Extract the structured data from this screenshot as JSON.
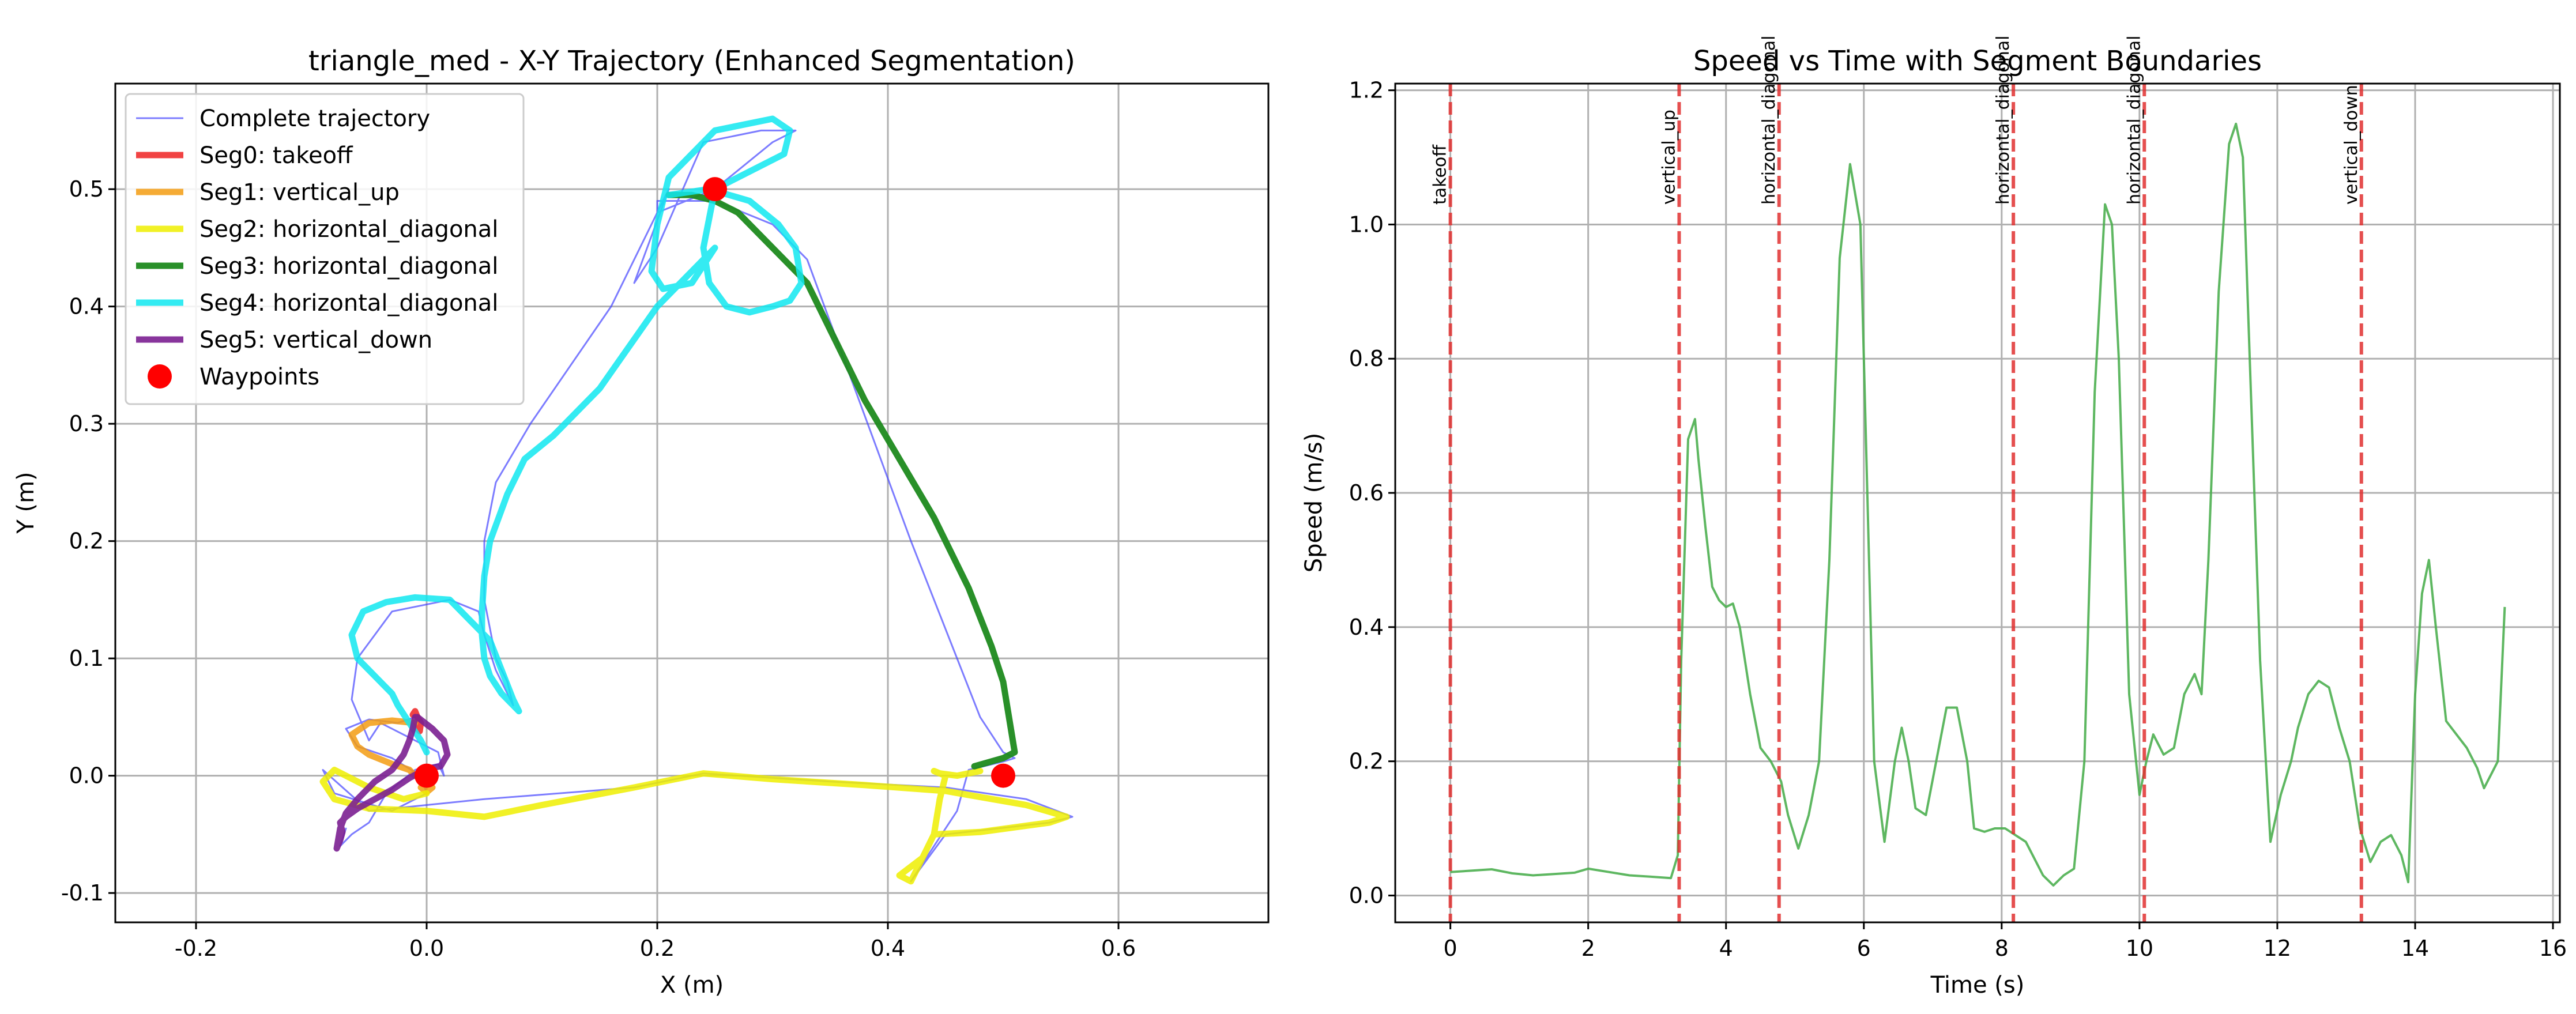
{
  "chart_data": [
    {
      "type": "line",
      "title": "triangle_med - X-Y Trajectory (Enhanced Segmentation)",
      "xlabel": "X (m)",
      "ylabel": "Y (m)",
      "xlim": [
        -0.27,
        0.73
      ],
      "ylim": [
        -0.125,
        0.59
      ],
      "xticks": [
        -0.2,
        0.0,
        0.2,
        0.4,
        0.6
      ],
      "xtick_labels": [
        "-0.2",
        "0.0",
        "0.2",
        "0.4",
        "0.6"
      ],
      "yticks": [
        -0.1,
        0.0,
        0.1,
        0.2,
        0.3,
        0.4,
        0.5
      ],
      "ytick_labels": [
        "-0.1",
        "0.0",
        "0.1",
        "0.2",
        "0.3",
        "0.4",
        "0.5"
      ],
      "grid": true,
      "legend_position": "top-left",
      "series": [
        {
          "name": "Complete trajectory",
          "color": "#4444ff",
          "width": 3,
          "opacity": 0.7,
          "x": [
            -0.01,
            -0.025,
            -0.05,
            -0.07,
            -0.06,
            -0.03,
            -0.005,
            0.0,
            -0.03,
            -0.08,
            -0.09,
            -0.05,
            0.05,
            0.18,
            0.24,
            0.35,
            0.45,
            0.52,
            0.56,
            0.54,
            0.45,
            0.42,
            0.44,
            0.46,
            0.47,
            0.5,
            0.51,
            0.5,
            0.48,
            0.42,
            0.33,
            0.3,
            0.25,
            0.2,
            0.2,
            0.25,
            0.3,
            0.32,
            0.29,
            0.24,
            0.2,
            0.18,
            0.21,
            0.16,
            0.09,
            0.06,
            0.05,
            0.05,
            0.06,
            0.07,
            0.075,
            0.06,
            0.05,
            0.045,
            0.02,
            -0.03,
            -0.06,
            -0.065,
            -0.05,
            -0.04,
            -0.03,
            -0.01,
            0.01,
            0.015,
            0.01,
            -0.01,
            -0.035,
            -0.05,
            -0.065,
            -0.075,
            -0.07
          ],
          "y": [
            0.05,
            0.045,
            0.048,
            0.04,
            0.025,
            0.015,
            0.0,
            -0.015,
            -0.03,
            -0.015,
            0.005,
            -0.03,
            -0.02,
            -0.01,
            0.002,
            -0.005,
            -0.01,
            -0.02,
            -0.035,
            -0.04,
            -0.05,
            -0.09,
            -0.06,
            -0.03,
            0.005,
            0.012,
            0.015,
            0.02,
            0.05,
            0.2,
            0.44,
            0.47,
            0.49,
            0.49,
            0.48,
            0.5,
            0.54,
            0.55,
            0.55,
            0.54,
            0.45,
            0.42,
            0.5,
            0.4,
            0.3,
            0.25,
            0.2,
            0.15,
            0.1,
            0.08,
            0.06,
            0.09,
            0.12,
            0.14,
            0.15,
            0.14,
            0.1,
            0.065,
            0.03,
            0.045,
            0.04,
            0.03,
            0.02,
            0.0,
            0.01,
            0.005,
            -0.015,
            -0.04,
            -0.05,
            -0.06,
            -0.045
          ]
        },
        {
          "name": "Seg0: takeoff",
          "color": "#ee2222",
          "width": 11,
          "opacity": 0.85,
          "x": [
            -0.012,
            -0.01,
            -0.008,
            -0.005,
            -0.006,
            -0.01
          ],
          "y": [
            0.052,
            0.055,
            0.05,
            0.045,
            0.038,
            0.042
          ]
        },
        {
          "name": "Seg1: vertical_up",
          "color": "#f39c12",
          "width": 11,
          "opacity": 0.85,
          "x": [
            -0.01,
            -0.03,
            -0.05,
            -0.065,
            -0.06,
            -0.05,
            -0.03,
            -0.015,
            -0.01,
            0.0,
            0.005,
            0.0,
            -0.005
          ],
          "y": [
            0.045,
            0.047,
            0.045,
            0.035,
            0.025,
            0.018,
            0.01,
            0.005,
            0.0,
            -0.005,
            -0.01,
            -0.014,
            -0.01
          ]
        },
        {
          "name": "Seg2: horizontal_diagonal",
          "color": "#eeee00",
          "width": 11,
          "opacity": 0.85,
          "x": [
            0.0,
            -0.02,
            -0.05,
            -0.08,
            -0.09,
            -0.08,
            -0.05,
            0.0,
            0.05,
            0.1,
            0.18,
            0.24,
            0.3,
            0.38,
            0.45,
            0.52,
            0.555,
            0.54,
            0.48,
            0.44,
            0.42,
            0.41,
            0.43,
            0.44,
            0.445,
            0.45,
            0.44,
            0.445,
            0.46,
            0.48
          ],
          "y": [
            -0.015,
            -0.02,
            -0.01,
            0.005,
            -0.005,
            -0.02,
            -0.028,
            -0.03,
            -0.035,
            -0.025,
            -0.01,
            0.002,
            -0.003,
            -0.008,
            -0.013,
            -0.025,
            -0.035,
            -0.04,
            -0.048,
            -0.05,
            -0.09,
            -0.085,
            -0.07,
            -0.05,
            -0.02,
            0.0,
            0.004,
            0.002,
            0.0,
            0.004
          ]
        },
        {
          "name": "Seg3: horizontal_diagonal",
          "color": "#1e8a1e",
          "width": 11,
          "opacity": 0.95,
          "x": [
            0.475,
            0.5,
            0.51,
            0.505,
            0.5,
            0.49,
            0.47,
            0.44,
            0.41,
            0.38,
            0.35,
            0.33,
            0.31,
            0.29,
            0.27,
            0.25,
            0.23,
            0.21
          ],
          "y": [
            0.008,
            0.015,
            0.02,
            0.05,
            0.08,
            0.11,
            0.16,
            0.22,
            0.27,
            0.32,
            0.38,
            0.42,
            0.44,
            0.46,
            0.48,
            0.49,
            0.495,
            0.495
          ]
        },
        {
          "name": "Seg4: horizontal_diagonal",
          "color": "#11e8f0",
          "width": 11,
          "opacity": 0.85,
          "x": [
            0.21,
            0.245,
            0.28,
            0.305,
            0.32,
            0.325,
            0.315,
            0.3,
            0.28,
            0.26,
            0.245,
            0.24,
            0.25,
            0.31,
            0.315,
            0.3,
            0.25,
            0.21,
            0.2,
            0.195,
            0.205,
            0.23,
            0.25,
            0.2,
            0.15,
            0.11,
            0.085,
            0.07,
            0.055,
            0.05,
            0.048,
            0.048,
            0.05,
            0.055,
            0.065,
            0.075,
            0.08,
            0.075,
            0.065,
            0.055,
            0.04,
            0.02,
            -0.01,
            -0.035,
            -0.055,
            -0.065,
            -0.06,
            -0.045,
            -0.03,
            -0.025,
            -0.015,
            -0.005,
            0.0
          ],
          "y": [
            0.495,
            0.5,
            0.49,
            0.47,
            0.45,
            0.42,
            0.405,
            0.4,
            0.395,
            0.4,
            0.42,
            0.45,
            0.5,
            0.53,
            0.55,
            0.56,
            0.55,
            0.51,
            0.47,
            0.43,
            0.415,
            0.42,
            0.45,
            0.4,
            0.33,
            0.29,
            0.27,
            0.24,
            0.2,
            0.17,
            0.14,
            0.12,
            0.1,
            0.085,
            0.07,
            0.06,
            0.055,
            0.065,
            0.09,
            0.115,
            0.13,
            0.15,
            0.152,
            0.148,
            0.14,
            0.12,
            0.1,
            0.085,
            0.07,
            0.06,
            0.045,
            0.03,
            0.02
          ]
        },
        {
          "name": "Seg5: vertical_down",
          "color": "#7b1f91",
          "width": 11,
          "opacity": 0.9,
          "x": [
            -0.008,
            0.005,
            0.015,
            0.018,
            0.012,
            0.0,
            -0.015,
            -0.03,
            -0.045,
            -0.06,
            -0.07,
            -0.075,
            -0.073,
            -0.075,
            -0.078,
            -0.075,
            -0.07,
            -0.06,
            -0.045,
            -0.03,
            -0.02,
            -0.015,
            -0.012,
            -0.01
          ],
          "y": [
            0.05,
            0.04,
            0.03,
            0.018,
            0.008,
            0.006,
            -0.002,
            -0.012,
            -0.02,
            -0.028,
            -0.035,
            -0.04,
            -0.048,
            -0.055,
            -0.062,
            -0.045,
            -0.032,
            -0.02,
            -0.005,
            0.005,
            0.018,
            0.03,
            0.04,
            0.05
          ]
        }
      ],
      "waypoints": {
        "name": "Waypoints",
        "color": "#ff0000",
        "x": [
          0.0,
          0.25,
          0.5
        ],
        "y": [
          0.0,
          0.5,
          0.0
        ]
      }
    },
    {
      "type": "line",
      "title": "Speed vs Time with Segment Boundaries",
      "xlabel": "Time (s)",
      "ylabel": "Speed (m/s)",
      "xlim": [
        -0.8,
        16.1
      ],
      "ylim": [
        -0.04,
        1.21
      ],
      "xticks": [
        0,
        2,
        4,
        6,
        8,
        10,
        12,
        14,
        16
      ],
      "xtick_labels": [
        "0",
        "2",
        "4",
        "6",
        "8",
        "10",
        "12",
        "14",
        "16"
      ],
      "yticks": [
        0.0,
        0.2,
        0.4,
        0.6,
        0.8,
        1.0,
        1.2
      ],
      "ytick_labels": [
        "0.0",
        "0.2",
        "0.4",
        "0.6",
        "0.8",
        "1.0",
        "1.2"
      ],
      "grid": true,
      "series": [
        {
          "color": "#4caf50",
          "x": [
            0.0,
            0.3,
            0.6,
            0.9,
            1.2,
            1.5,
            1.8,
            2.0,
            2.3,
            2.6,
            2.9,
            3.2,
            3.3,
            3.35,
            3.45,
            3.55,
            3.6,
            3.7,
            3.8,
            3.9,
            4.0,
            4.1,
            4.2,
            4.35,
            4.5,
            4.65,
            4.8,
            4.9,
            5.05,
            5.2,
            5.35,
            5.5,
            5.65,
            5.8,
            5.95,
            6.05,
            6.15,
            6.3,
            6.45,
            6.55,
            6.65,
            6.75,
            6.9,
            7.05,
            7.2,
            7.35,
            7.5,
            7.6,
            7.75,
            7.9,
            8.05,
            8.2,
            8.35,
            8.5,
            8.6,
            8.75,
            8.9,
            9.05,
            9.2,
            9.35,
            9.5,
            9.6,
            9.7,
            9.85,
            10.0,
            10.1,
            10.2,
            10.35,
            10.5,
            10.65,
            10.8,
            10.9,
            11.0,
            11.15,
            11.3,
            11.4,
            11.5,
            11.6,
            11.75,
            11.9,
            12.05,
            12.2,
            12.3,
            12.45,
            12.6,
            12.75,
            12.9,
            13.05,
            13.2,
            13.35,
            13.5,
            13.65,
            13.8,
            13.9,
            14.0,
            14.1,
            14.2,
            14.3,
            14.45,
            14.6,
            14.75,
            14.9,
            15.0,
            15.1,
            15.2,
            15.3
          ],
          "y": [
            0.035,
            0.037,
            0.039,
            0.033,
            0.03,
            0.032,
            0.034,
            0.04,
            0.035,
            0.03,
            0.028,
            0.026,
            0.06,
            0.35,
            0.68,
            0.71,
            0.65,
            0.55,
            0.46,
            0.44,
            0.43,
            0.435,
            0.4,
            0.3,
            0.22,
            0.2,
            0.17,
            0.12,
            0.07,
            0.12,
            0.2,
            0.5,
            0.95,
            1.09,
            1.0,
            0.6,
            0.2,
            0.08,
            0.2,
            0.25,
            0.2,
            0.13,
            0.12,
            0.2,
            0.28,
            0.28,
            0.2,
            0.1,
            0.095,
            0.1,
            0.1,
            0.09,
            0.08,
            0.05,
            0.03,
            0.015,
            0.03,
            0.04,
            0.2,
            0.75,
            1.03,
            1.0,
            0.8,
            0.3,
            0.15,
            0.2,
            0.24,
            0.21,
            0.22,
            0.3,
            0.33,
            0.3,
            0.5,
            0.9,
            1.12,
            1.15,
            1.1,
            0.8,
            0.35,
            0.08,
            0.15,
            0.2,
            0.25,
            0.3,
            0.32,
            0.31,
            0.25,
            0.2,
            0.1,
            0.05,
            0.08,
            0.09,
            0.06,
            0.02,
            0.3,
            0.45,
            0.5,
            0.4,
            0.26,
            0.24,
            0.22,
            0.19,
            0.16,
            0.18,
            0.2,
            0.43
          ]
        }
      ],
      "boundaries": [
        {
          "x": 0.0,
          "label": "takeoff"
        },
        {
          "x": 3.32,
          "label": "vertical_up"
        },
        {
          "x": 4.77,
          "label": "horizontal_diagonal"
        },
        {
          "x": 8.17,
          "label": "horizontal_diagonal"
        },
        {
          "x": 10.07,
          "label": "horizontal_diagonal"
        },
        {
          "x": 13.22,
          "label": "vertical_down"
        }
      ],
      "boundary_color": "#e03030"
    }
  ]
}
